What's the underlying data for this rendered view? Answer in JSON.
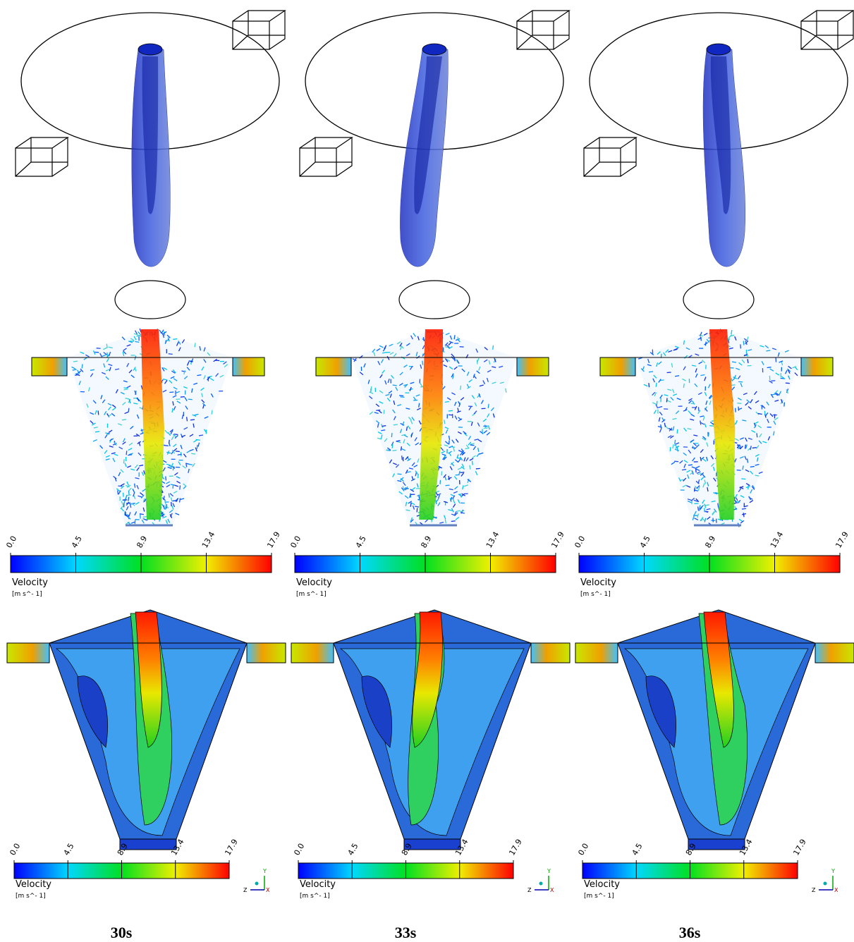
{
  "colorbar": {
    "ticks": [
      "0.0",
      "4.5",
      "8.9",
      "13.4",
      "17.9"
    ],
    "title": "Velocity",
    "unit": "[m  s^- 1]"
  },
  "axes": {
    "y": "Y",
    "z": "Z",
    "x": "X"
  },
  "panels": [
    {
      "label": "30s"
    },
    {
      "label": "33s"
    },
    {
      "label": "36s"
    }
  ]
}
